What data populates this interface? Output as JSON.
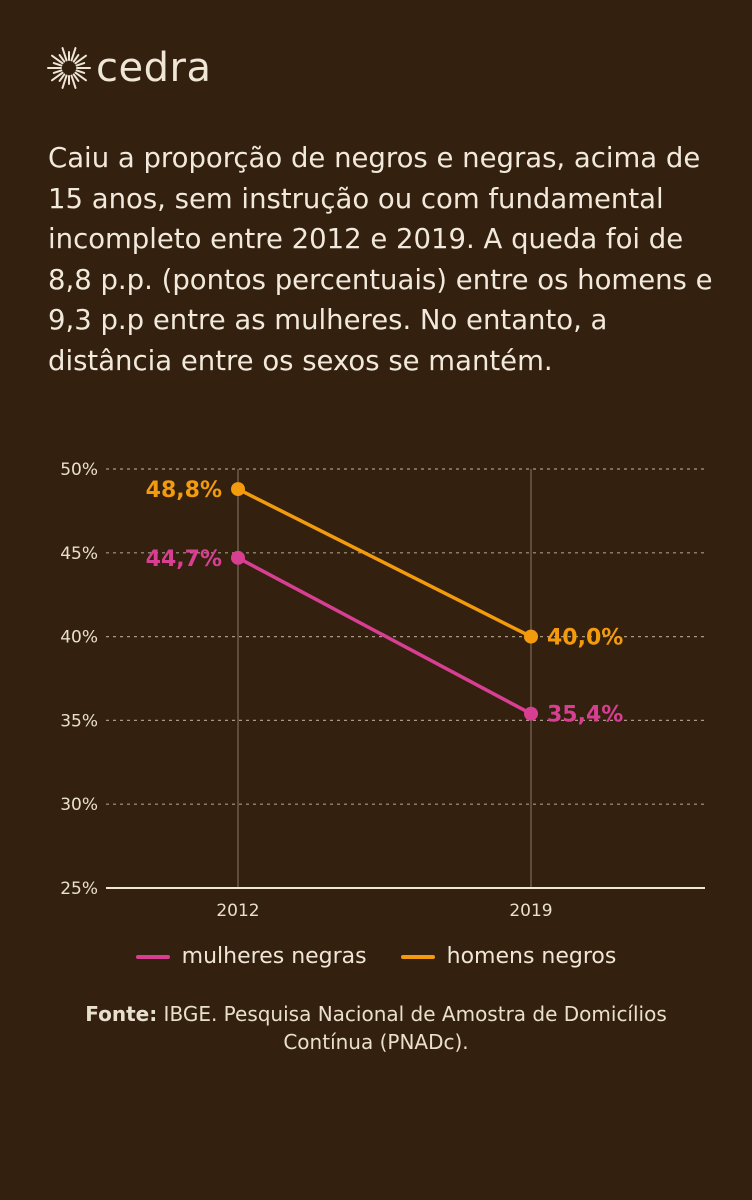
{
  "brand": {
    "name": "cedra",
    "icon": "sun-icon"
  },
  "headline": "Caiu a proporção de negros e negras, acima de 15 anos, sem instrução ou com fundamental incompleto entre 2012 e 2019. A queda foi de 8,8 p.p. (pontos percentuais) entre os homens e 9,3 p.p entre as mulheres. No entanto, a distância entre os sexos se mantém.",
  "colors": {
    "background": "#33200f",
    "text": "#efe6d6",
    "mulheres": "#d83f93",
    "homens": "#f39a0d"
  },
  "chart_data": {
    "type": "line",
    "x": [
      "2012",
      "2019"
    ],
    "yticks": [
      "50%",
      "45%",
      "40%",
      "35%",
      "30%",
      "25%"
    ],
    "ylim": [
      25,
      50
    ],
    "grid": true,
    "legend_position": "bottom",
    "series": [
      {
        "name": "mulheres negras",
        "color": "#d83f93",
        "values": [
          44.7,
          35.4
        ],
        "labels": [
          "44,7%",
          "35,4%"
        ]
      },
      {
        "name": "homens negros",
        "color": "#f39a0d",
        "values": [
          48.8,
          40.0
        ],
        "labels": [
          "48,8%",
          "40,0%"
        ]
      }
    ]
  },
  "source": {
    "label": "Fonte:",
    "text": "IBGE. Pesquisa Nacional de Amostra de Domicílios Contínua (PNADc)."
  }
}
